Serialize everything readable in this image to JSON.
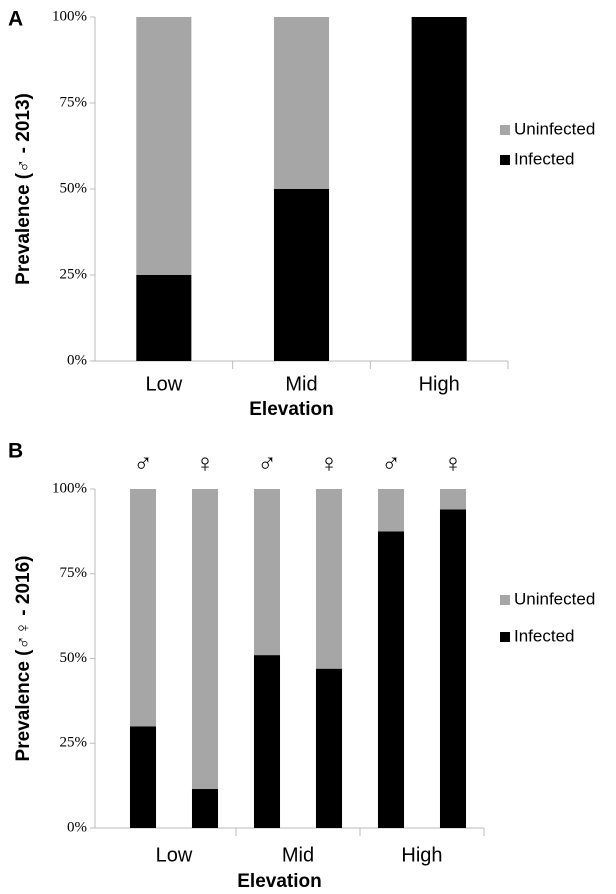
{
  "chart_data": [
    {
      "type": "stacked-bar",
      "panel": "A",
      "ylabel": "Prevalence (♂ - 2013)",
      "xlabel": "Elevation",
      "categories": [
        "Low",
        "Mid",
        "High"
      ],
      "series": [
        {
          "name": "Infected",
          "color": "#000000",
          "values": [
            25,
            50,
            100
          ]
        },
        {
          "name": "Uninfected",
          "color": "#a6a6a6",
          "values": [
            75,
            50,
            0
          ]
        }
      ],
      "ylim": [
        0,
        100
      ],
      "yticks": [
        {
          "value": 0,
          "label": "0%"
        },
        {
          "value": 25,
          "label": "25%"
        },
        {
          "value": 50,
          "label": "50%"
        },
        {
          "value": 75,
          "label": "75%"
        },
        {
          "value": 100,
          "label": "100%"
        }
      ]
    },
    {
      "type": "stacked-bar",
      "panel": "B",
      "ylabel": "Prevalence (♂♀ - 2016)",
      "xlabel": "Elevation",
      "categories": [
        "♂",
        "♀",
        "♂",
        "♀",
        "♂",
        "♀"
      ],
      "groups": [
        "Low",
        "Mid",
        "High"
      ],
      "series": [
        {
          "name": "Infected",
          "color": "#000000",
          "values": [
            30,
            11.5,
            51,
            47,
            87.5,
            94
          ]
        },
        {
          "name": "Uninfected",
          "color": "#a6a6a6",
          "values": [
            70,
            88.5,
            49,
            53,
            12.5,
            6
          ]
        }
      ],
      "ylim": [
        0,
        100
      ],
      "yticks": [
        {
          "value": 0,
          "label": "0%"
        },
        {
          "value": 25,
          "label": "25%"
        },
        {
          "value": 50,
          "label": "50%"
        },
        {
          "value": 75,
          "label": "75%"
        },
        {
          "value": 100,
          "label": "100%"
        }
      ]
    }
  ]
}
